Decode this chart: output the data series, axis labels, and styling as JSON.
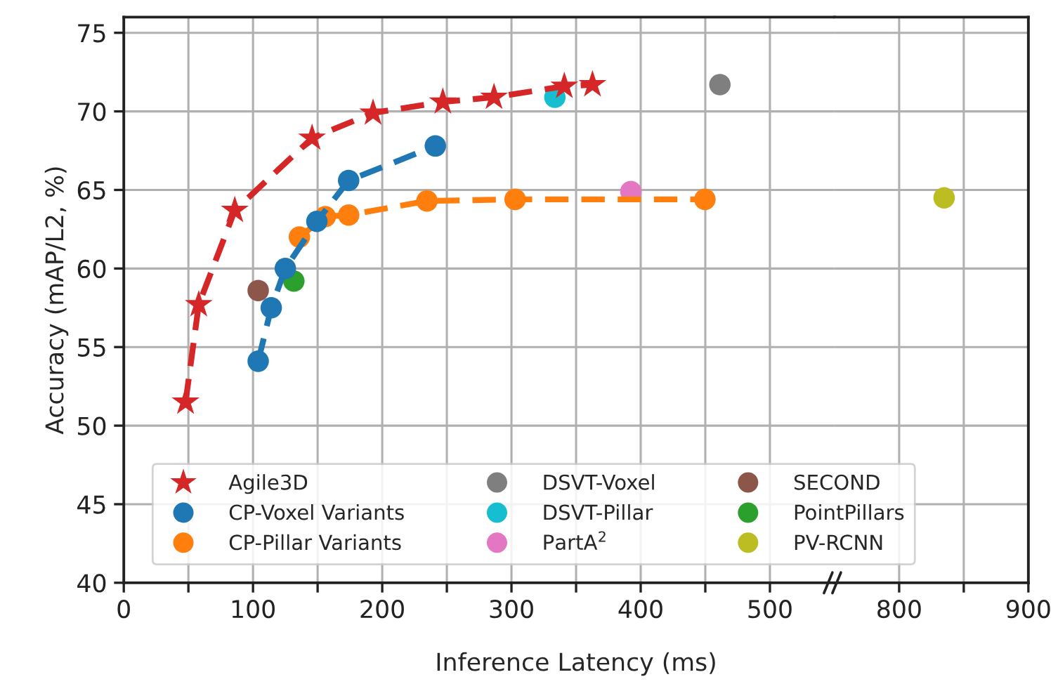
{
  "chart_data": [
    {
      "type": "scatter",
      "xlabel": "Inference Latency (ms)",
      "ylabel": "Accuracy (mAP/L2, %)",
      "xlim": [
        0,
        550
      ],
      "ylim": [
        40,
        76
      ],
      "xticks": [
        0,
        {
          "value": 50,
          "label": null
        },
        100,
        {
          "value": 150,
          "label": null
        },
        200,
        {
          "value": 250,
          "label": null
        },
        300,
        {
          "value": 350,
          "label": null
        },
        400,
        {
          "value": 450,
          "label": null
        },
        500
      ],
      "yticks": [
        40,
        45,
        50,
        55,
        60,
        65,
        70,
        75
      ],
      "grid": true,
      "legend": "bottom",
      "series": [
        {
          "name": "Agile3D",
          "type": "line",
          "marker": "star",
          "line_style": "dashed",
          "color": "#d62728",
          "x": [
            47.8,
            58,
            85.9,
            145.7,
            192.9,
            246.9,
            286.5,
            340.9,
            362.7
          ],
          "values": [
            51.5,
            57.7,
            63.7,
            68.3,
            69.9,
            70.6,
            70.9,
            71.6,
            71.7
          ]
        },
        {
          "name": "CP-Voxel Variants",
          "type": "line",
          "marker": "circle",
          "line_style": "dashed",
          "color": "#1f77b4",
          "x": [
            104,
            114.1,
            125,
            149.4,
            174,
            241.1
          ],
          "values": [
            54.1,
            57.5,
            60.0,
            63.0,
            65.6,
            67.8
          ]
        },
        {
          "name": "CP-Pillar Variants",
          "type": "line",
          "marker": "circle",
          "line_style": "dashed",
          "color": "#ff7f0e",
          "x": [
            135.9,
            155.9,
            174,
            234.6,
            302.8,
            449.7
          ],
          "values": [
            62.0,
            63.3,
            63.4,
            64.3,
            64.4,
            64.4
          ]
        },
        {
          "name": "DSVT-Voxel",
          "marker": "circle",
          "color": "#7f7f7f",
          "x": [
            461.3
          ],
          "values": [
            71.7
          ]
        },
        {
          "name": "DSVT-Pillar",
          "marker": "circle",
          "color": "#17becf",
          "x": [
            333.6
          ],
          "values": [
            70.9
          ]
        },
        {
          "name": "PartA$^{2}$",
          "marker": "circle",
          "color": "#e377c2",
          "x": [
            392.4
          ],
          "values": [
            64.9
          ]
        },
        {
          "name": "SECOND",
          "marker": "circle",
          "color": "#8c564b",
          "x": [
            104
          ],
          "values": [
            58.6
          ]
        },
        {
          "name": "PointPillars",
          "marker": "circle",
          "color": "#2ca02c",
          "x": [
            131.6
          ],
          "values": [
            59.2
          ]
        }
      ]
    },
    {
      "type": "scatter",
      "xlim": [
        750,
        900
      ],
      "ylim": [
        40,
        76
      ],
      "xticks": [
        800,
        {
          "value": 850,
          "label": null
        },
        900
      ],
      "yticks": [
        40,
        45,
        50,
        55,
        60,
        65,
        70,
        75
      ],
      "grid": true,
      "tick_labels": "x",
      "series": [
        {
          "name": "PV-RCNN",
          "marker": "circle",
          "color": "#bcbd22",
          "x": [
            834.8
          ],
          "values": [
            64.5
          ]
        }
      ]
    }
  ]
}
